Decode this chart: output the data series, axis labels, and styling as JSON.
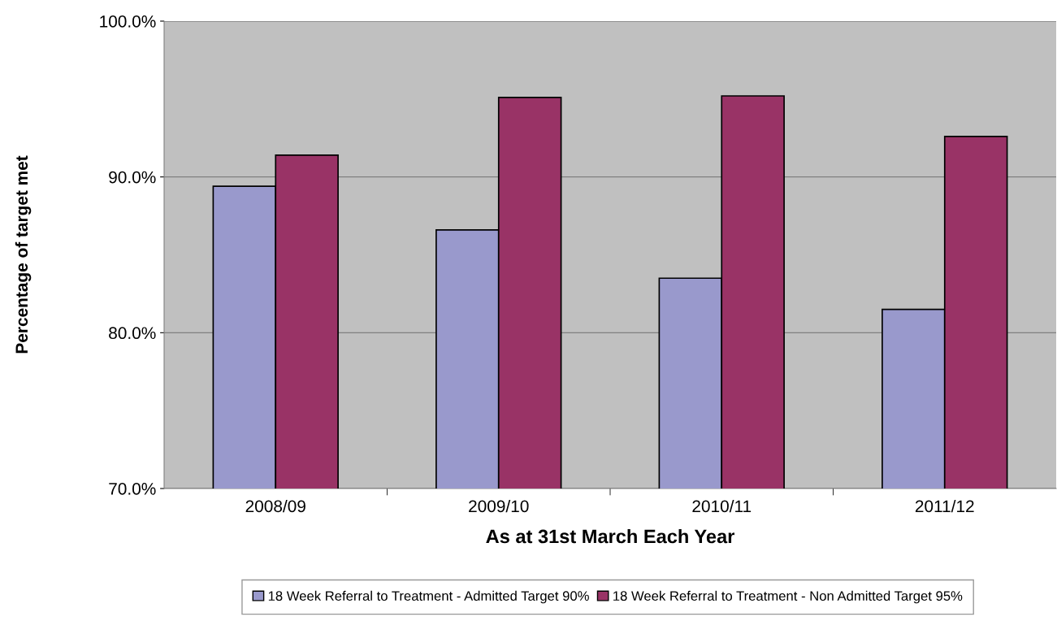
{
  "chart_data": {
    "type": "bar",
    "xlabel": "As at 31st March Each Year",
    "ylabel": "Percentage of target met",
    "categories": [
      "2008/09",
      "2009/10",
      "2010/11",
      "2011/12"
    ],
    "series": [
      {
        "name": "18 Week Referral to Treatment - Admitted Target 90%",
        "color": "#9999cc",
        "values": [
          89.4,
          86.6,
          83.5,
          81.5
        ]
      },
      {
        "name": "18 Week Referral to Treatment - Non Admitted Target 95%",
        "color": "#993366",
        "values": [
          91.4,
          95.1,
          95.2,
          92.6
        ]
      }
    ],
    "ylim": [
      70,
      100
    ],
    "yticks": [
      {
        "value": 70,
        "label": "70.0%"
      },
      {
        "value": 80,
        "label": "80.0%"
      },
      {
        "value": 90,
        "label": "90.0%"
      },
      {
        "value": 100,
        "label": "100.0%"
      }
    ],
    "grid": "y",
    "legend": "bottom"
  }
}
